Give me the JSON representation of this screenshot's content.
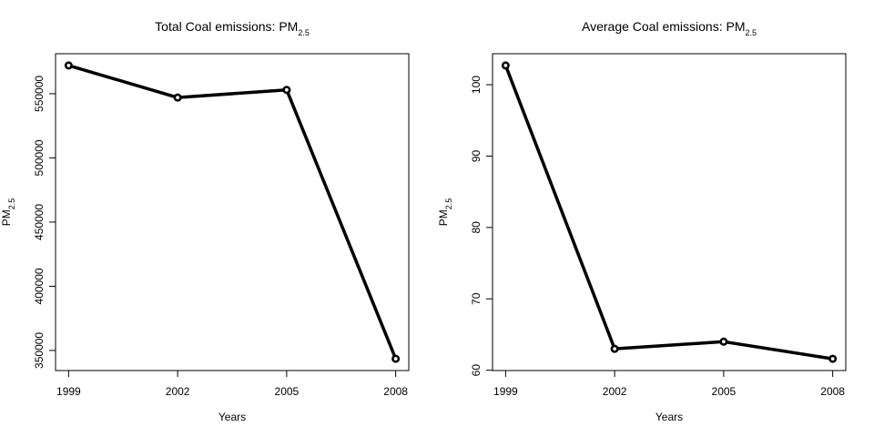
{
  "chart_data": [
    {
      "type": "line",
      "title": "Total Coal emissions: PM",
      "title_subscript": "2.5",
      "xlabel": "Years",
      "ylabel": "PM",
      "ylabel_subscript": "2.5",
      "x": [
        1999,
        2002,
        2005,
        2008
      ],
      "values": [
        572000,
        547000,
        553000,
        343500
      ],
      "xticks": [
        "1999",
        "2002",
        "2005",
        "2008"
      ],
      "yticks": [
        350000,
        400000,
        450000,
        500000,
        550000
      ],
      "ytick_labels": [
        "350000",
        "400000",
        "450000",
        "500000",
        "550000"
      ],
      "ylim": [
        334340,
        581160
      ],
      "xlim": [
        1998.64,
        2008.36
      ],
      "marker": "open-circle",
      "line_color": "#000000",
      "grid": false,
      "legend": "none"
    },
    {
      "type": "line",
      "title": "Average Coal emissions: PM",
      "title_subscript": "2.5",
      "xlabel": "Years",
      "ylabel": "PM",
      "ylabel_subscript": "2.5",
      "x": [
        1999,
        2002,
        2005,
        2008
      ],
      "values": [
        102.7,
        63.0,
        64.0,
        61.6
      ],
      "xticks": [
        "1999",
        "2002",
        "2005",
        "2008"
      ],
      "yticks": [
        60,
        70,
        80,
        90,
        100
      ],
      "ytick_labels": [
        "60",
        "70",
        "80",
        "90",
        "100"
      ],
      "ylim": [
        59.956,
        104.344
      ],
      "xlim": [
        1998.64,
        2008.36
      ],
      "marker": "open-circle",
      "line_color": "#000000",
      "grid": false,
      "legend": "none"
    }
  ]
}
